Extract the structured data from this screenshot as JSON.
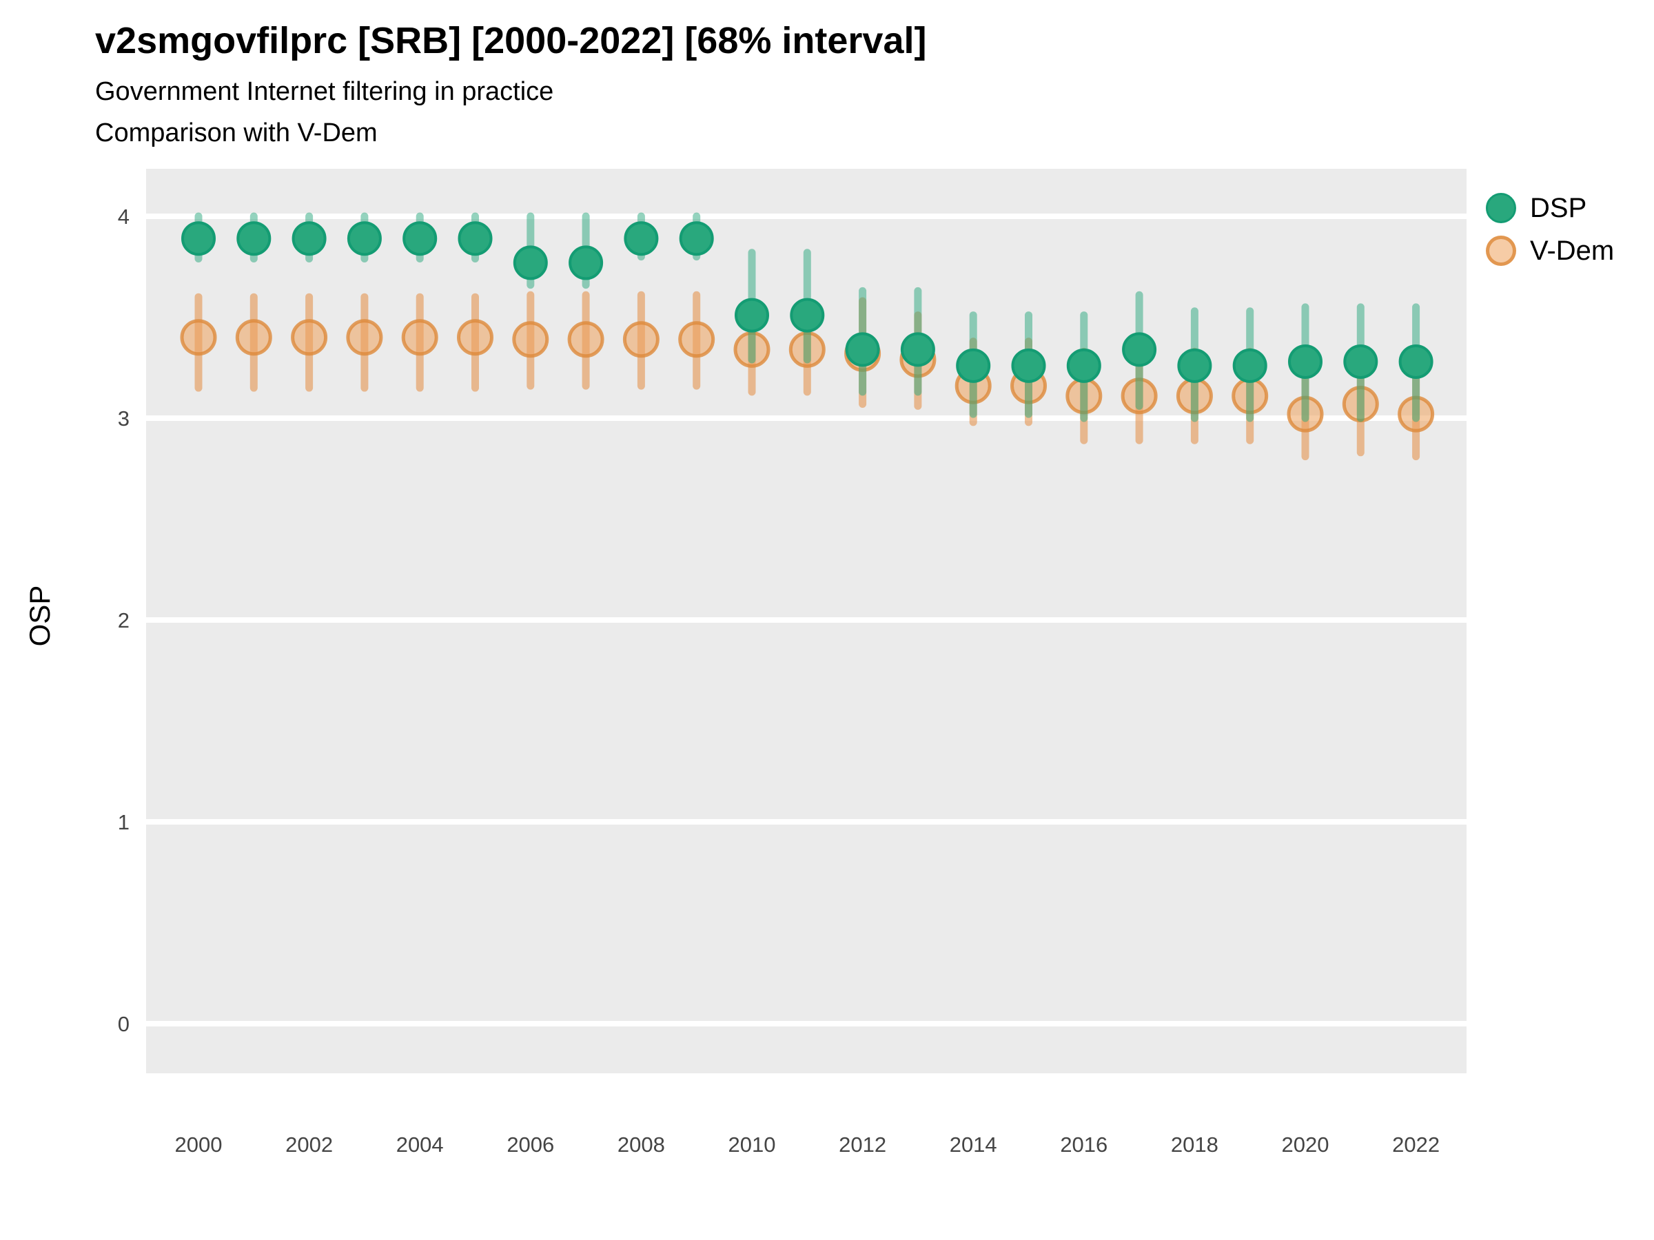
{
  "header": {
    "title": "v2smgovfilprc [SRB] [2000-2022] [68% interval]",
    "subtitle1": "Government Internet filtering in practice",
    "subtitle2": "Comparison with V-Dem"
  },
  "axes": {
    "y_title": "OSP",
    "y_ticks": [
      4,
      3,
      2,
      1,
      0
    ],
    "x_ticks": [
      2000,
      2002,
      2004,
      2006,
      2008,
      2010,
      2012,
      2014,
      2016,
      2018,
      2020,
      2022
    ]
  },
  "legend": {
    "items": [
      {
        "label": "DSP"
      },
      {
        "label": "V-Dem"
      }
    ]
  },
  "colors": {
    "dsp_fill": "#29a87d",
    "dsp_stroke": "#149c73",
    "dsp_interval": "rgba(41,168,126,0.5)",
    "vdem_fill": "rgba(238,162,92,0.55)",
    "vdem_stroke": "rgba(221,137,59,0.8)",
    "vdem_interval": "rgba(228,141,66,0.55)",
    "panel_bg": "#ebebeb",
    "gridline": "#ffffff",
    "tick_text": "#444444",
    "text": "#000000"
  },
  "chart_data": {
    "type": "pointrange",
    "title": "v2smgovfilprc [SRB] [2000-2022] [68% interval]",
    "subtitle": "Government Internet filtering in practice — Comparison with V-Dem",
    "interval": "68%",
    "xlabel": "",
    "ylabel": "OSP",
    "ylim": [
      -0.25,
      4.25
    ],
    "xlim": [
      1999,
      2023
    ],
    "grid": "horizontal-major-white-on-gray",
    "legend_position": "right-top",
    "x": [
      2000,
      2001,
      2002,
      2003,
      2004,
      2005,
      2006,
      2007,
      2008,
      2009,
      2010,
      2011,
      2012,
      2013,
      2014,
      2015,
      2016,
      2017,
      2018,
      2019,
      2020,
      2021,
      2022
    ],
    "series": [
      {
        "name": "DSP",
        "values": [
          3.89,
          3.89,
          3.89,
          3.89,
          3.89,
          3.89,
          3.77,
          3.77,
          3.89,
          3.89,
          3.51,
          3.51,
          3.34,
          3.34,
          3.26,
          3.26,
          3.26,
          3.34,
          3.26,
          3.26,
          3.28,
          3.28,
          3.28
        ],
        "lower": [
          3.79,
          3.79,
          3.79,
          3.79,
          3.79,
          3.79,
          3.66,
          3.66,
          3.8,
          3.8,
          3.29,
          3.29,
          3.13,
          3.13,
          3.02,
          3.02,
          3.0,
          3.06,
          3.0,
          3.0,
          3.0,
          3.0,
          3.0
        ],
        "upper": [
          4.0,
          4.0,
          4.0,
          4.0,
          4.0,
          4.0,
          4.0,
          4.0,
          4.0,
          4.0,
          3.82,
          3.82,
          3.63,
          3.63,
          3.51,
          3.51,
          3.51,
          3.61,
          3.53,
          3.53,
          3.55,
          3.55,
          3.55
        ]
      },
      {
        "name": "V-Dem",
        "values": [
          3.4,
          3.4,
          3.4,
          3.4,
          3.4,
          3.4,
          3.39,
          3.39,
          3.39,
          3.39,
          3.34,
          3.34,
          3.32,
          3.29,
          3.16,
          3.16,
          3.11,
          3.11,
          3.11,
          3.11,
          3.02,
          3.07,
          3.02
        ],
        "lower": [
          3.15,
          3.15,
          3.15,
          3.15,
          3.15,
          3.15,
          3.16,
          3.16,
          3.16,
          3.16,
          3.13,
          3.13,
          3.07,
          3.06,
          2.98,
          2.98,
          2.89,
          2.89,
          2.89,
          2.89,
          2.81,
          2.83,
          2.81
        ],
        "upper": [
          3.6,
          3.6,
          3.6,
          3.6,
          3.6,
          3.6,
          3.61,
          3.61,
          3.61,
          3.61,
          3.5,
          3.5,
          3.58,
          3.51,
          3.38,
          3.38,
          3.33,
          3.33,
          3.33,
          3.33,
          3.23,
          3.31,
          3.23
        ]
      }
    ]
  }
}
